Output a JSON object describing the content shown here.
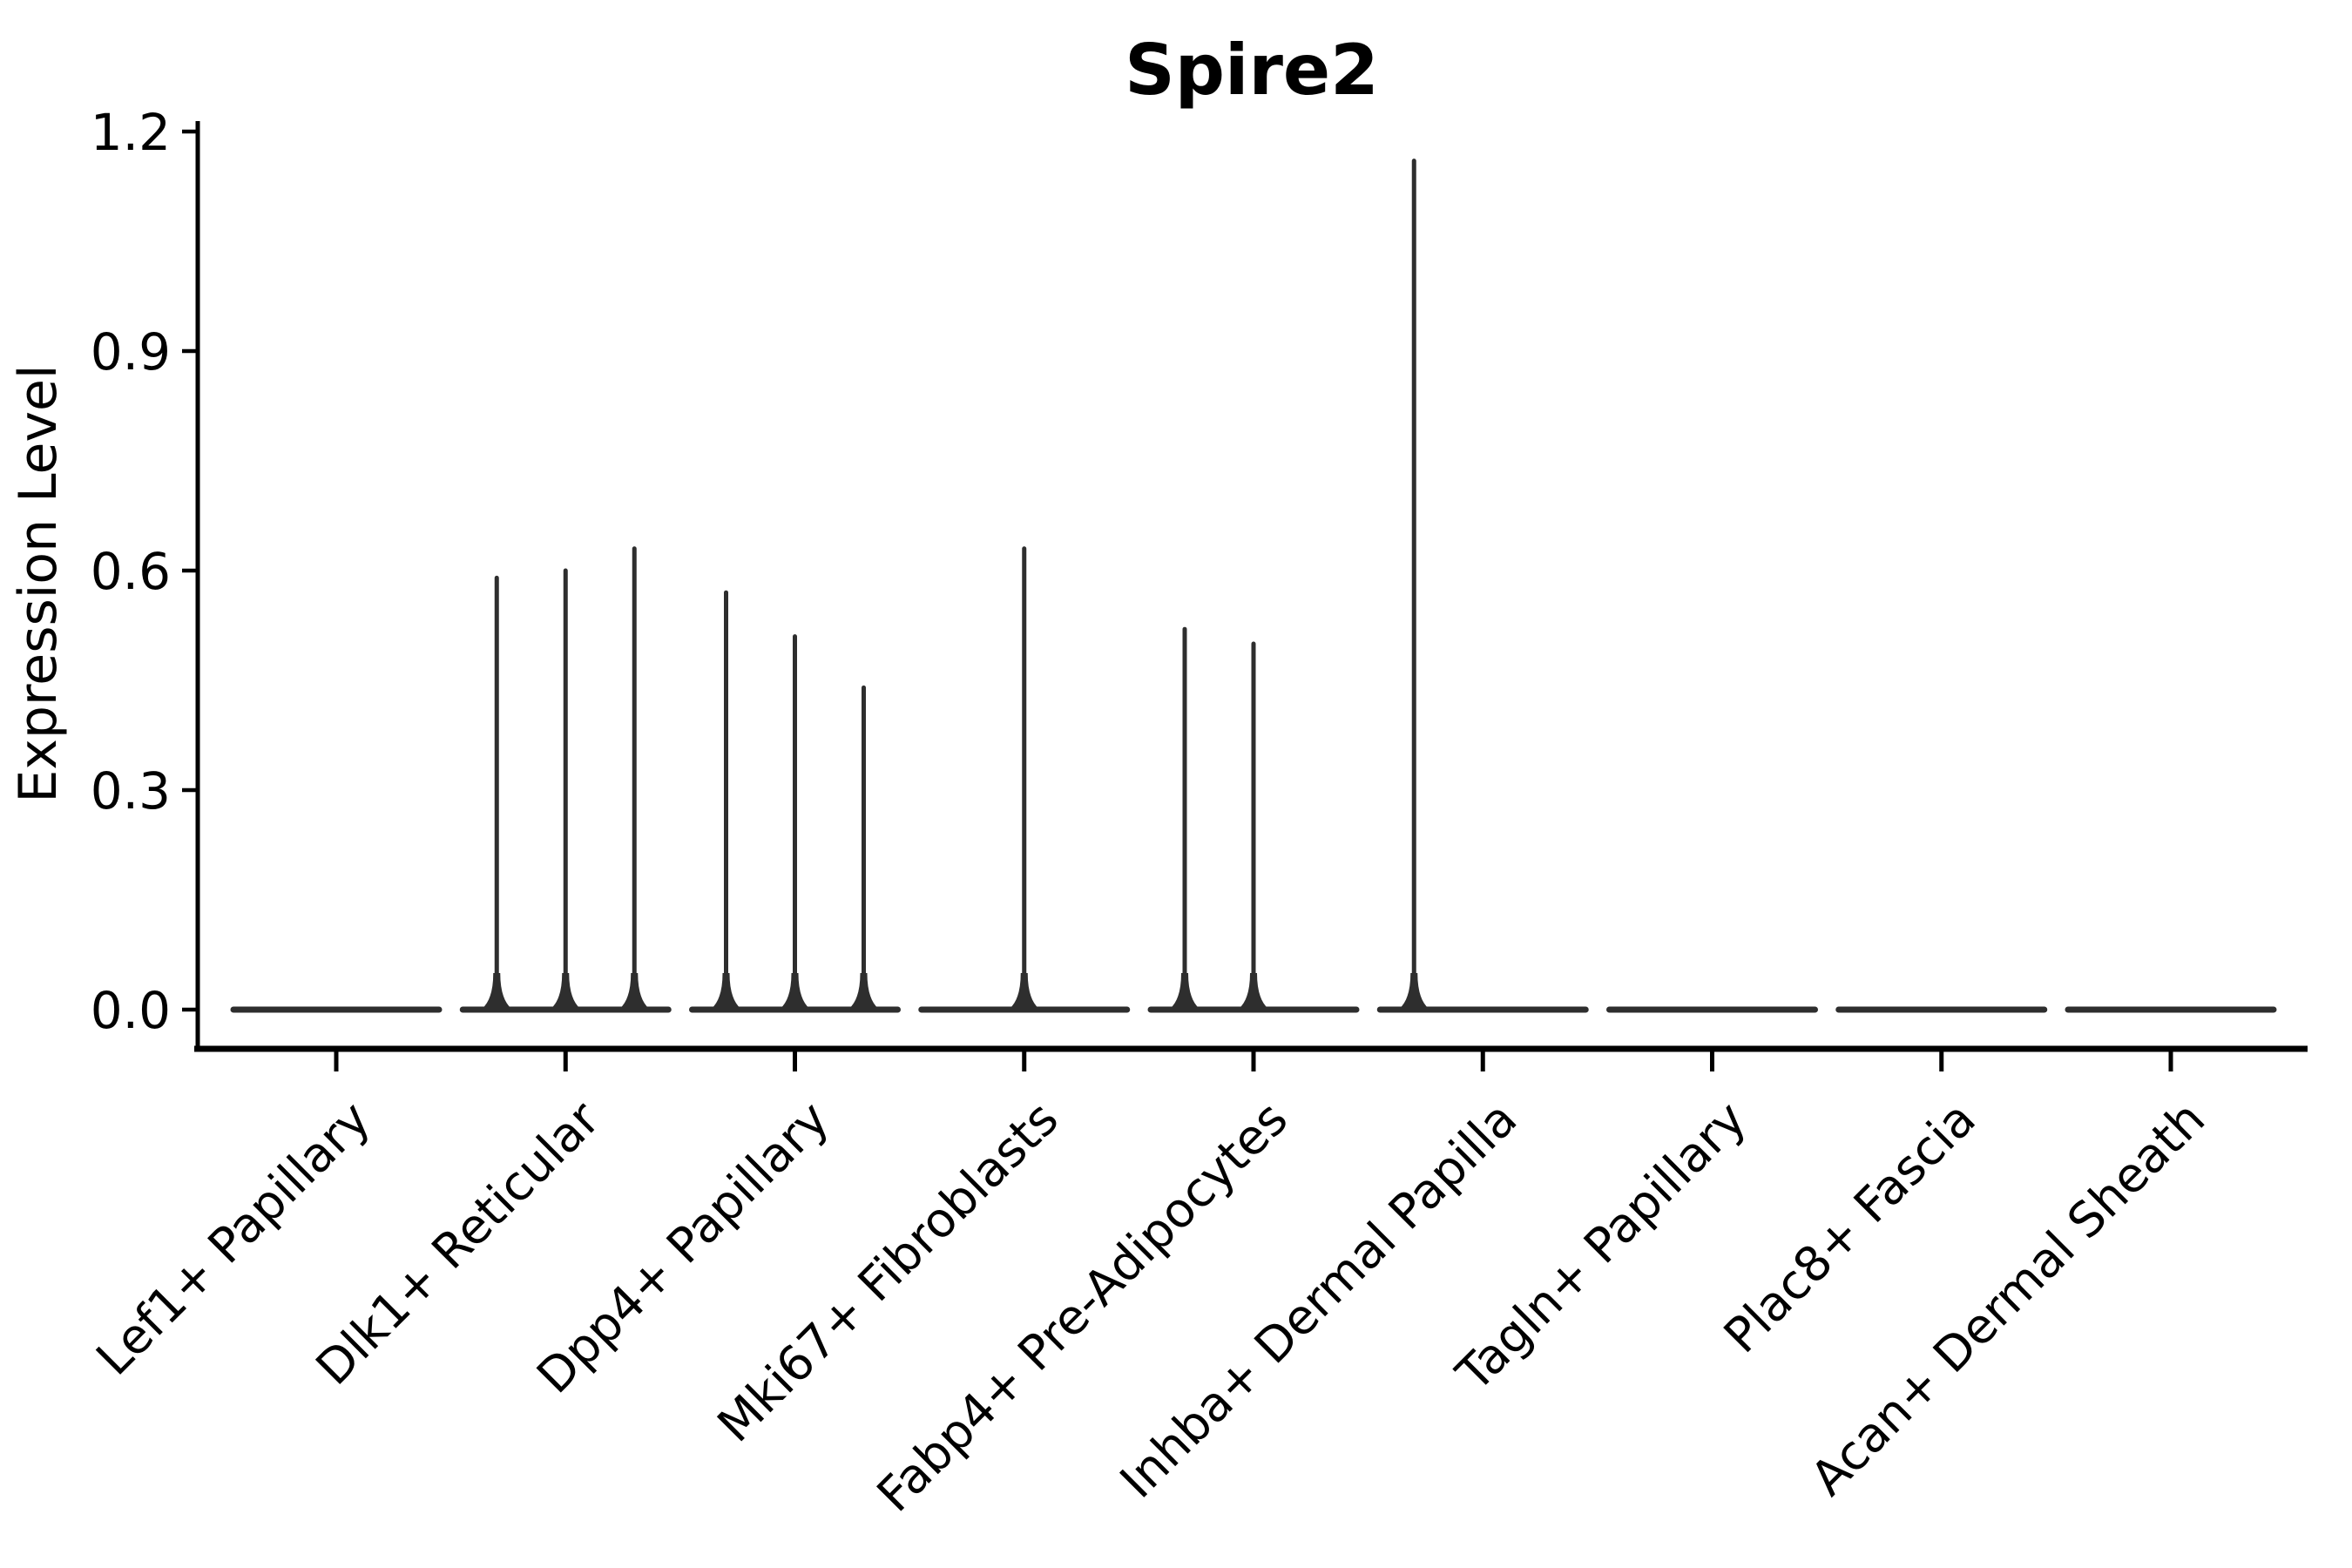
{
  "figure": {
    "background": "#ffffff",
    "line_color": "#2e2e2e",
    "axis_color": "#000000",
    "text_color": "#000000"
  },
  "chart_data": {
    "type": "violin",
    "title": "Spire2",
    "xlabel": "",
    "ylabel": "Expression Level",
    "ylim": [
      0,
      1.2
    ],
    "yticks": [
      "0.0",
      "0.3",
      "0.6",
      "0.9",
      "1.2"
    ],
    "ytick_values": [
      0.0,
      0.3,
      0.6,
      0.9,
      1.2
    ],
    "grid": "off",
    "legend": "none",
    "violins_per_category": 3,
    "note": "Each category shows 3 thin sub-violins; nearly all mass at 0 (flat baseline). spike_values = max expression reached by each sub-violin; null = fully flat at 0.",
    "categories": [
      "Lef1+ Papillary",
      "Dlk1+ Reticular",
      "Dpp4+ Papillary",
      "Mki67+ Fibroblasts",
      "Fabp4+ Pre-Adipocytes",
      "Inhba+ Dermal Papilla",
      "Tagln+ Papillary",
      "Plac8+ Fascia",
      "Acan+ Dermal Sheath"
    ],
    "groups": [
      {
        "category": "Lef1+ Papillary",
        "spike_values": [
          null,
          null,
          null
        ]
      },
      {
        "category": "Dlk1+ Reticular",
        "spike_values": [
          0.59,
          0.6,
          0.63
        ]
      },
      {
        "category": "Dpp4+ Papillary",
        "spike_values": [
          0.57,
          0.51,
          0.44
        ]
      },
      {
        "category": "Mki67+ Fibroblasts",
        "spike_values": [
          null,
          0.63,
          null
        ]
      },
      {
        "category": "Fabp4+ Pre-Adipocytes",
        "spike_values": [
          0.52,
          0.5,
          null
        ]
      },
      {
        "category": "Inhba+ Dermal Papilla",
        "spike_values": [
          1.16,
          null,
          null
        ]
      },
      {
        "category": "Tagln+ Papillary",
        "spike_values": [
          null,
          null,
          null
        ]
      },
      {
        "category": "Plac8+ Fascia",
        "spike_values": [
          null,
          null,
          null
        ]
      },
      {
        "category": "Acan+ Dermal Sheath",
        "spike_values": [
          null,
          null,
          null
        ]
      }
    ]
  }
}
